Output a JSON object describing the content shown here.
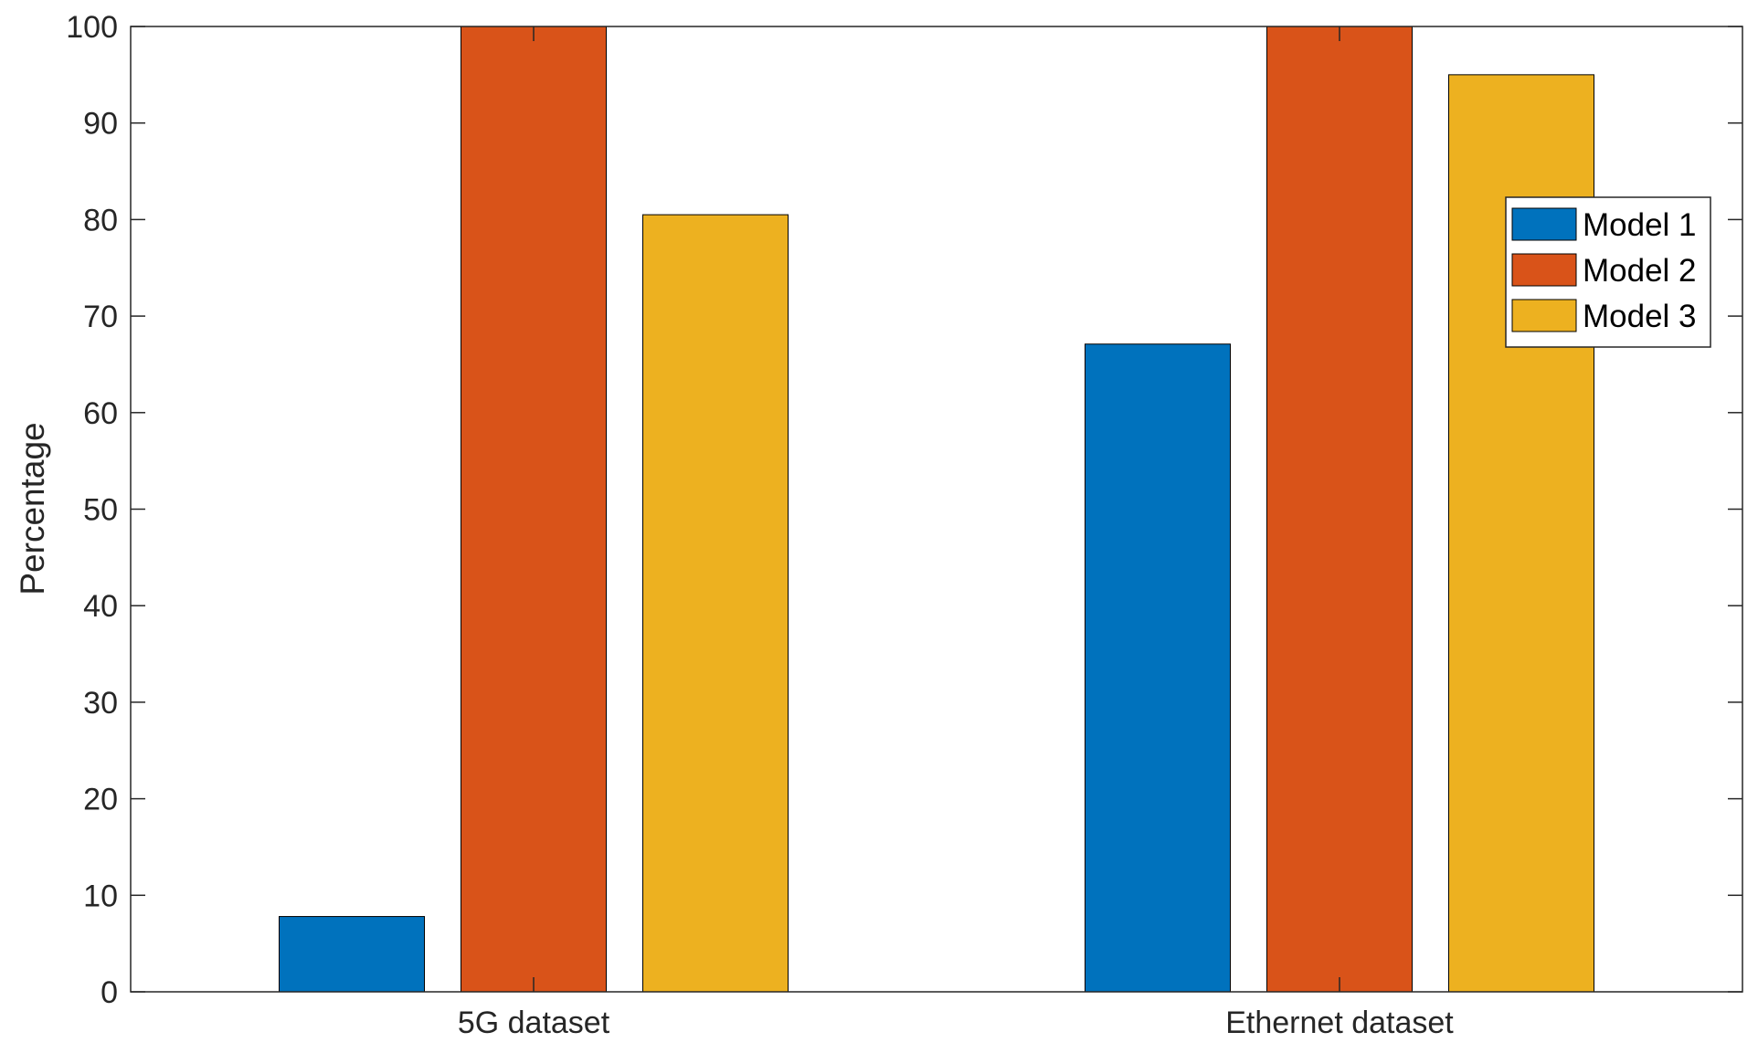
{
  "chart_data": {
    "type": "bar",
    "categories": [
      "5G dataset",
      "Ethernet dataset"
    ],
    "series": [
      {
        "name": "Model 1",
        "values": [
          7.8,
          67.1
        ],
        "color": "#0072BD"
      },
      {
        "name": "Model 2",
        "values": [
          100,
          100
        ],
        "color": "#D95319"
      },
      {
        "name": "Model 3",
        "values": [
          80.5,
          95.0
        ],
        "color": "#EDB120"
      }
    ],
    "title": "",
    "xlabel": "",
    "ylabel": "Percentage",
    "ylim": [
      0,
      100
    ],
    "yticks": [
      0,
      10,
      20,
      30,
      40,
      50,
      60,
      70,
      80,
      90,
      100
    ],
    "grid": false,
    "legend_position": "top-right"
  }
}
